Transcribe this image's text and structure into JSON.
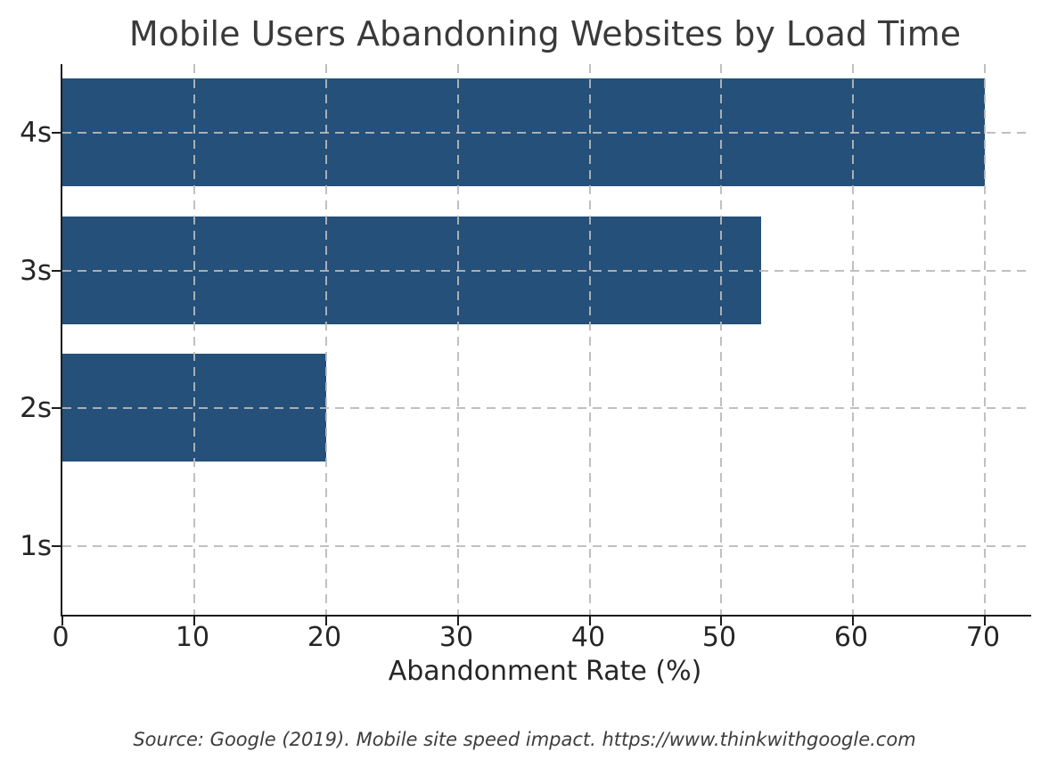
{
  "chart_data": {
    "type": "bar",
    "orientation": "horizontal",
    "title": "Mobile Users Abandoning Websites by Load Time",
    "xlabel": "Abandonment Rate (%)",
    "ylabel": "",
    "categories": [
      "4s",
      "3s",
      "2s",
      "1s"
    ],
    "values": [
      70,
      53,
      20,
      0
    ],
    "xticks": [
      0,
      10,
      20,
      30,
      40,
      50,
      60,
      70
    ],
    "xlim": [
      0,
      73.5
    ],
    "grid": true,
    "grid_style": "dashed",
    "legend": "none",
    "bar_color": "#24507a",
    "spine_color": "#1c1c1c",
    "grid_color": "#b9b9b9",
    "title_color": "#3a3a3a",
    "tick_label_color": "#262626",
    "source_note": "Source: Google (2019). Mobile site speed impact. https://www.thinkwithgoogle.com",
    "source_note_color": "#3d3d3d"
  }
}
